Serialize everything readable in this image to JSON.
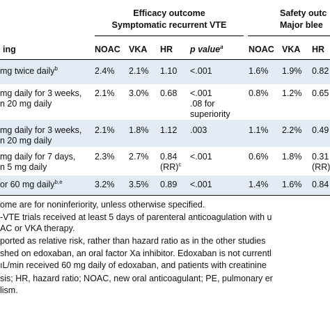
{
  "header": {
    "efficacy_title_1": "Efficacy outcome",
    "efficacy_title_2": "Symptomatic recurrent VTE",
    "safety_title_1": "Safety outc",
    "safety_title_2": "Major blee",
    "columns": {
      "dosing": "ing",
      "noac": "NOAC",
      "vka": "VKA",
      "hr": "HR",
      "p_value": "p value",
      "p_value_sup": "a",
      "noac2": "NOAC",
      "vka2": "VKA",
      "hr2": "HR"
    }
  },
  "rows": [
    {
      "dosing_1": " mg twice daily",
      "dosing_1_sup": "b",
      "noac": "2.4%",
      "vka": "2.1%",
      "hr": "1.10",
      "p": "<.001",
      "noac2": "1.6%",
      "vka2": "1.9%",
      "hr2": "0.82"
    },
    {
      "dosing_1": "mg daily for 3 weeks,",
      "dosing_2": "n 20 mg daily",
      "noac": "2.1%",
      "vka": "3.0%",
      "hr": "0.68",
      "p": "<.001",
      "p_2": ".08 for",
      "p_3": "superiority",
      "noac2": "0.8%",
      "vka2": "1.2%",
      "hr2": "0.65"
    },
    {
      "dosing_1": "mg daily for 3 weeks,",
      "dosing_2": "n 20 mg daily",
      "noac": "2.1%",
      "vka": "1.8%",
      "hr": "1.12",
      "p": ".003",
      "noac2": "1.1%",
      "vka2": "2.2%",
      "hr2": "0.49"
    },
    {
      "dosing_1": "mg daily for 7 days,",
      "dosing_2": "n 5 mg daily",
      "noac": "2.3%",
      "vka": "2.7%",
      "hr": "0.84",
      "hr_2": "(RR)",
      "hr_sup": "c",
      "p": "<.001",
      "noac2": "0.6%",
      "vka2": "1.8%",
      "hr2": "0.31",
      "hr2_2": "(RR)"
    },
    {
      "dosing_1": " or 60 mg daily",
      "dosing_1_sup": "b,e",
      "noac": "3.2%",
      "vka": "3.5%",
      "hr": "0.89",
      "p": "<.001",
      "noac2": "1.4%",
      "vka2": "1.6%",
      "hr2": "0.84"
    }
  ],
  "footnotes": [
    "ome are for noninferiority, unless otherwise specified.",
    "-VTE trials received at least 5 days of parenteral anticoagulation with u",
    "AC or VKA therapy.",
    "ported as relative risk, rather than hazard ratio as in the other studies",
    "shed on edoxaban, an oral factor Xa inhibitor. Edoxaban is not currentl",
    "ıL/min received 60 mg daily of edoxaban, and patients with creatinine",
    "sis; HR, hazard ratio; NOAC, new oral anticoagulant; PE, pulmonary er",
    "lism."
  ]
}
